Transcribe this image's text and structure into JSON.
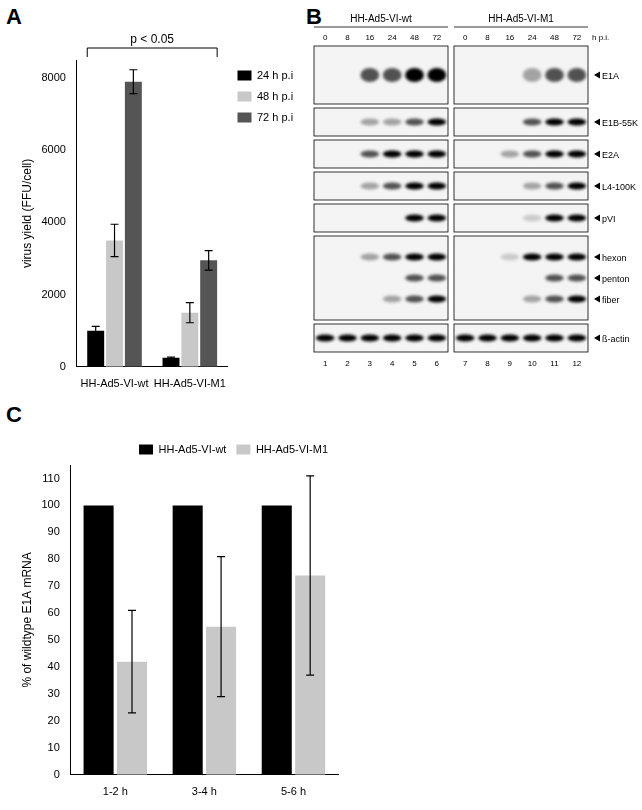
{
  "chart_data": [
    {
      "panel": "A",
      "type": "bar",
      "categories": [
        "HH-Ad5-VI-wt",
        "HH-Ad5-VI-M1"
      ],
      "y_label": "virus yield (FFU/cell)",
      "ylim": [
        0,
        8500
      ],
      "yticks": [
        0,
        2000,
        4000,
        6000,
        8000
      ],
      "grid": false,
      "legend": "right",
      "annotations": [
        "p < 0.05"
      ],
      "series": [
        {
          "name": "24 h p.i",
          "color": "#000000",
          "values": [
            1000,
            250
          ],
          "errors": [
            120,
            20
          ]
        },
        {
          "name": "48 h p.i",
          "color": "#c8c8c8",
          "values": [
            3500,
            1500
          ],
          "errors": [
            450,
            280
          ]
        },
        {
          "name": "72 h p.i",
          "color": "#555555",
          "values": [
            7900,
            2950
          ],
          "errors": [
            330,
            270
          ]
        }
      ]
    },
    {
      "panel": "C",
      "type": "bar",
      "categories": [
        "1-2 h",
        "3-4 h",
        "5-6 h"
      ],
      "y_label": "% of wildtype E1A mRNA",
      "ylim": [
        0,
        115
      ],
      "yticks": [
        0,
        10,
        20,
        30,
        40,
        50,
        60,
        70,
        80,
        90,
        100,
        110
      ],
      "grid": false,
      "legend": "top",
      "series": [
        {
          "name": "HH-Ad5-VI-wt",
          "color": "#000000",
          "values": [
            100,
            100,
            100
          ]
        },
        {
          "name": "HH-Ad5-VI-M1",
          "color": "#c8c8c8",
          "values": [
            42,
            55,
            74
          ],
          "errors": [
            19,
            26,
            37
          ]
        }
      ]
    }
  ],
  "blot": {
    "panel": "B",
    "groups": [
      "HH-Ad5-VI-wt",
      "HH-Ad5-VI-M1"
    ],
    "timepoints": [
      "0",
      "8",
      "16",
      "24",
      "48",
      "72"
    ],
    "time_unit": "h p.i.",
    "lanes": [
      "1",
      "2",
      "3",
      "4",
      "5",
      "6",
      "7",
      "8",
      "9",
      "10",
      "11",
      "12"
    ],
    "strips": [
      {
        "bands": [
          {
            "label": "E1A",
            "levels": [
              0,
              0,
              2,
              2,
              3,
              3,
              0,
              0,
              0,
              1,
              2,
              2
            ]
          }
        ]
      },
      {
        "bands": [
          {
            "label": "E1B-55K",
            "levels": [
              0,
              0,
              1,
              1,
              2,
              3,
              0,
              0,
              0,
              2,
              3,
              3
            ]
          }
        ]
      },
      {
        "bands": [
          {
            "label": "E2A",
            "levels": [
              0,
              0,
              2,
              3,
              3,
              3,
              0,
              0,
              1,
              2,
              3,
              3
            ]
          }
        ]
      },
      {
        "bands": [
          {
            "label": "L4-100K",
            "levels": [
              0,
              0,
              1,
              2,
              3,
              3,
              0,
              0,
              0,
              1,
              2,
              3
            ]
          }
        ]
      },
      {
        "bands": [
          {
            "label": "pVI",
            "levels": [
              0,
              0,
              0,
              0,
              3,
              3,
              0,
              0,
              0,
              0.5,
              3,
              3
            ]
          }
        ]
      },
      {
        "bands": [
          {
            "label": "hexon",
            "levels": [
              0,
              0,
              1,
              2,
              3,
              3,
              0,
              0,
              0.5,
              3,
              3,
              3
            ]
          },
          {
            "label": "penton",
            "levels": [
              0,
              0,
              0,
              0,
              2,
              2,
              0,
              0,
              0,
              0,
              2,
              2
            ]
          },
          {
            "label": "fiber",
            "levels": [
              0,
              0,
              0,
              1,
              2,
              3,
              0,
              0,
              0,
              1,
              2,
              3
            ]
          }
        ]
      },
      {
        "bands": [
          {
            "label": "ß-actin",
            "levels": [
              3,
              3,
              3,
              3,
              3,
              3,
              3,
              3,
              3,
              3,
              3,
              3
            ]
          }
        ]
      }
    ]
  }
}
